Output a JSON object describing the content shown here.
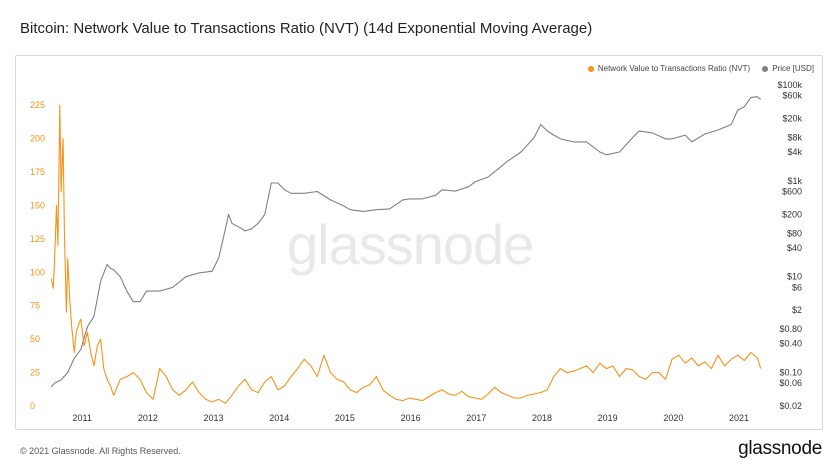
{
  "header": {
    "title": "Bitcoin: Network Value to Transactions Ratio (NVT) (14d Exponential Moving Average)"
  },
  "footer": {
    "copyright": "© 2021 Glassnode. All Rights Reserved.",
    "logo_text": "glassnode"
  },
  "watermark": "glassnode",
  "colors": {
    "nvt": "#f7931a",
    "price": "#808080",
    "left_axis_text": "#f7931a",
    "right_axis_text": "#333333"
  },
  "chart_data": {
    "type": "line",
    "title": "Bitcoin: Network Value to Transactions Ratio (NVT) (14d Exponential Moving Average)",
    "xlabel": "",
    "x_tick_labels": [
      "2011",
      "2012",
      "2013",
      "2014",
      "2015",
      "2016",
      "2017",
      "2018",
      "2019",
      "2020",
      "2021"
    ],
    "xlim": [
      2010.5,
      2021.4
    ],
    "legend_position": "top-right",
    "grid": false,
    "y_left": {
      "label": "",
      "scale": "linear",
      "ylim": [
        0,
        240
      ],
      "ticks": [
        "0",
        "25",
        "50",
        "75",
        "100",
        "125",
        "150",
        "175",
        "200",
        "225"
      ]
    },
    "y_right": {
      "label": "",
      "scale": "log",
      "ylim": [
        0.02,
        100000
      ],
      "ticks": [
        {
          "v": 0.02,
          "label": "$0.02"
        },
        {
          "v": 0.06,
          "label": "$0.06"
        },
        {
          "v": 0.1,
          "label": "$0.10"
        },
        {
          "v": 0.4,
          "label": "$0.40"
        },
        {
          "v": 0.8,
          "label": "$0.80"
        },
        {
          "v": 2,
          "label": "$2"
        },
        {
          "v": 6,
          "label": "$6"
        },
        {
          "v": 10,
          "label": "$10"
        },
        {
          "v": 40,
          "label": "$40"
        },
        {
          "v": 80,
          "label": "$80"
        },
        {
          "v": 200,
          "label": "$200"
        },
        {
          "v": 600,
          "label": "$600"
        },
        {
          "v": 1000,
          "label": "$1k"
        },
        {
          "v": 4000,
          "label": "$4k"
        },
        {
          "v": 8000,
          "label": "$8k"
        },
        {
          "v": 20000,
          "label": "$20k"
        },
        {
          "v": 60000,
          "label": "$60k"
        },
        {
          "v": 100000,
          "label": "$100k"
        }
      ]
    },
    "series": [
      {
        "name": "Network Value to Transactions Ratio (NVT)",
        "axis": "left",
        "x": [
          2010.55,
          2010.58,
          2010.6,
          2010.63,
          2010.65,
          2010.68,
          2010.7,
          2010.73,
          2010.75,
          2010.78,
          2010.8,
          2010.83,
          2010.86,
          2010.9,
          2010.93,
          2010.96,
          2011.0,
          2011.05,
          2011.1,
          2011.15,
          2011.2,
          2011.25,
          2011.3,
          2011.35,
          2011.4,
          2011.45,
          2011.5,
          2011.6,
          2011.7,
          2011.8,
          2011.9,
          2012.0,
          2012.1,
          2012.2,
          2012.3,
          2012.4,
          2012.5,
          2012.6,
          2012.7,
          2012.8,
          2012.9,
          2013.0,
          2013.1,
          2013.2,
          2013.3,
          2013.4,
          2013.5,
          2013.6,
          2013.7,
          2013.8,
          2013.9,
          2014.0,
          2014.1,
          2014.2,
          2014.3,
          2014.4,
          2014.5,
          2014.6,
          2014.7,
          2014.8,
          2014.9,
          2015.0,
          2015.1,
          2015.2,
          2015.3,
          2015.4,
          2015.5,
          2015.6,
          2015.7,
          2015.8,
          2015.9,
          2016.0,
          2016.1,
          2016.2,
          2016.3,
          2016.4,
          2016.5,
          2016.6,
          2016.7,
          2016.8,
          2016.9,
          2017.0,
          2017.1,
          2017.2,
          2017.3,
          2017.4,
          2017.5,
          2017.6,
          2017.7,
          2017.8,
          2017.9,
          2018.0,
          2018.1,
          2018.2,
          2018.3,
          2018.4,
          2018.5,
          2018.6,
          2018.7,
          2018.8,
          2018.9,
          2019.0,
          2019.1,
          2019.2,
          2019.3,
          2019.4,
          2019.5,
          2019.6,
          2019.7,
          2019.8,
          2019.9,
          2020.0,
          2020.1,
          2020.2,
          2020.3,
          2020.4,
          2020.5,
          2020.6,
          2020.7,
          2020.8,
          2020.9,
          2021.0,
          2021.1,
          2021.2,
          2021.3,
          2021.35
        ],
        "values": [
          95,
          88,
          110,
          150,
          120,
          225,
          160,
          200,
          130,
          70,
          110,
          80,
          60,
          40,
          55,
          60,
          65,
          45,
          55,
          40,
          30,
          45,
          50,
          28,
          20,
          15,
          8,
          20,
          22,
          25,
          20,
          10,
          5,
          28,
          22,
          12,
          8,
          12,
          18,
          10,
          5,
          3,
          5,
          2,
          8,
          15,
          20,
          12,
          10,
          18,
          22,
          12,
          15,
          22,
          28,
          35,
          30,
          22,
          38,
          25,
          20,
          18,
          12,
          10,
          14,
          16,
          22,
          12,
          8,
          5,
          4,
          6,
          5,
          4,
          7,
          10,
          12,
          9,
          8,
          11,
          7,
          6,
          5,
          9,
          14,
          10,
          8,
          6,
          6,
          8,
          9,
          10,
          12,
          22,
          28,
          25,
          26,
          28,
          30,
          25,
          32,
          28,
          30,
          22,
          28,
          27,
          22,
          20,
          25,
          25,
          20,
          35,
          38,
          32,
          36,
          30,
          33,
          28,
          38,
          30,
          35,
          38,
          34,
          40,
          36,
          28
        ]
      },
      {
        "name": "Price [USD]",
        "axis": "right",
        "x": [
          2010.55,
          2010.6,
          2010.65,
          2010.7,
          2010.8,
          2010.9,
          2011.0,
          2011.1,
          2011.2,
          2011.3,
          2011.4,
          2011.45,
          2011.5,
          2011.6,
          2011.7,
          2011.8,
          2011.9,
          2012.0,
          2012.2,
          2012.4,
          2012.6,
          2012.8,
          2013.0,
          2013.1,
          2013.2,
          2013.25,
          2013.3,
          2013.4,
          2013.5,
          2013.6,
          2013.7,
          2013.8,
          2013.9,
          2014.0,
          2014.1,
          2014.2,
          2014.4,
          2014.6,
          2014.8,
          2015.0,
          2015.1,
          2015.3,
          2015.5,
          2015.7,
          2015.9,
          2016.0,
          2016.2,
          2016.4,
          2016.5,
          2016.7,
          2016.9,
          2017.0,
          2017.2,
          2017.4,
          2017.5,
          2017.7,
          2017.9,
          2018.0,
          2018.1,
          2018.2,
          2018.3,
          2018.5,
          2018.7,
          2018.9,
          2019.0,
          2019.2,
          2019.4,
          2019.5,
          2019.7,
          2019.9,
          2020.0,
          2020.2,
          2020.3,
          2020.5,
          2020.7,
          2020.9,
          2021.0,
          2021.1,
          2021.2,
          2021.3,
          2021.35
        ],
        "values": [
          0.05,
          0.06,
          0.065,
          0.07,
          0.1,
          0.2,
          0.3,
          0.9,
          1.5,
          8,
          18,
          15,
          14,
          10,
          5,
          3,
          3,
          5,
          5,
          6,
          10,
          12,
          13,
          25,
          100,
          200,
          130,
          110,
          90,
          100,
          130,
          200,
          900,
          900,
          650,
          550,
          550,
          600,
          400,
          300,
          250,
          230,
          250,
          260,
          400,
          420,
          420,
          500,
          650,
          610,
          750,
          950,
          1200,
          2000,
          2600,
          4000,
          8000,
          15000,
          11000,
          9000,
          7500,
          6500,
          6500,
          4000,
          3500,
          4000,
          8000,
          11000,
          10000,
          7500,
          7500,
          9000,
          6500,
          9500,
          11500,
          15000,
          30000,
          35000,
          55000,
          57000,
          50000
        ]
      }
    ]
  }
}
